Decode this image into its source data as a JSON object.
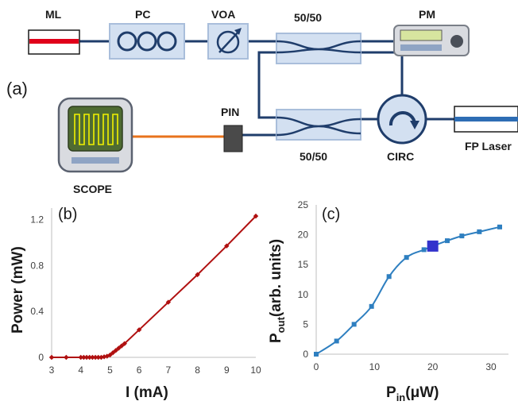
{
  "setup": {
    "panel_label": "(a)",
    "components": {
      "ml": "ML",
      "pc": "PC",
      "voa": "VOA",
      "coupler_top": "50/50",
      "pm": "PM",
      "pin": "PIN",
      "coupler_bottom": "50/50",
      "circ": "CIRC",
      "fp_laser": "FP Laser",
      "scope": "SCOPE"
    },
    "colors": {
      "fiber": "#1f3d6b",
      "electrical": "#e8731c",
      "component_fill": "#d3e0f1",
      "ml_stripe": "#e0001a",
      "scope_trace": "#f2f200"
    }
  },
  "chart_data": [
    {
      "panel": "(b)",
      "type": "line",
      "xlabel": "I (mA)",
      "ylabel": "Power (mW)",
      "xlim": [
        3,
        10
      ],
      "ylim": [
        0,
        1.3
      ],
      "xticks": [
        3,
        4,
        5,
        6,
        7,
        8,
        9,
        10
      ],
      "yticks": [
        0,
        0.4,
        0.8,
        1.2
      ],
      "ytick_labels": [
        "0",
        "0.4",
        "0.8",
        "1.2"
      ],
      "color": "#b01010",
      "marker": "diamond",
      "x": [
        3.0,
        3.5,
        4.0,
        4.1,
        4.2,
        4.3,
        4.4,
        4.5,
        4.6,
        4.7,
        4.8,
        4.9,
        5.0,
        5.1,
        5.2,
        5.3,
        5.4,
        5.5,
        6.0,
        7.0,
        8.0,
        9.0,
        10.0
      ],
      "y": [
        0,
        0,
        0,
        0,
        0,
        0,
        0,
        0,
        0,
        0,
        0.005,
        0.01,
        0.02,
        0.04,
        0.06,
        0.08,
        0.1,
        0.12,
        0.24,
        0.48,
        0.72,
        0.97,
        1.23
      ]
    },
    {
      "panel": "(c)",
      "type": "line",
      "xlabel_main": "P",
      "xlabel_sub": "in",
      "xlabel_rest": "(μW)",
      "ylabel_main": "P",
      "ylabel_sub": "out",
      "ylabel_rest": "(arb. units)",
      "xlim": [
        0,
        33
      ],
      "ylim": [
        0,
        25
      ],
      "xticks": [
        0,
        10,
        20,
        30
      ],
      "yticks": [
        0,
        5,
        10,
        15,
        20,
        25
      ],
      "color": "#2e7fc0",
      "marker": "square",
      "x": [
        0,
        3.5,
        6.5,
        9.5,
        12.5,
        15.5,
        18.5,
        22.5,
        25,
        28,
        31.5
      ],
      "y": [
        0,
        2.2,
        5,
        8,
        13,
        16.2,
        17.5,
        19,
        19.8,
        20.5,
        21.3
      ],
      "highlight": {
        "x": 20,
        "y": 18.1,
        "color": "#3333cc"
      }
    }
  ]
}
